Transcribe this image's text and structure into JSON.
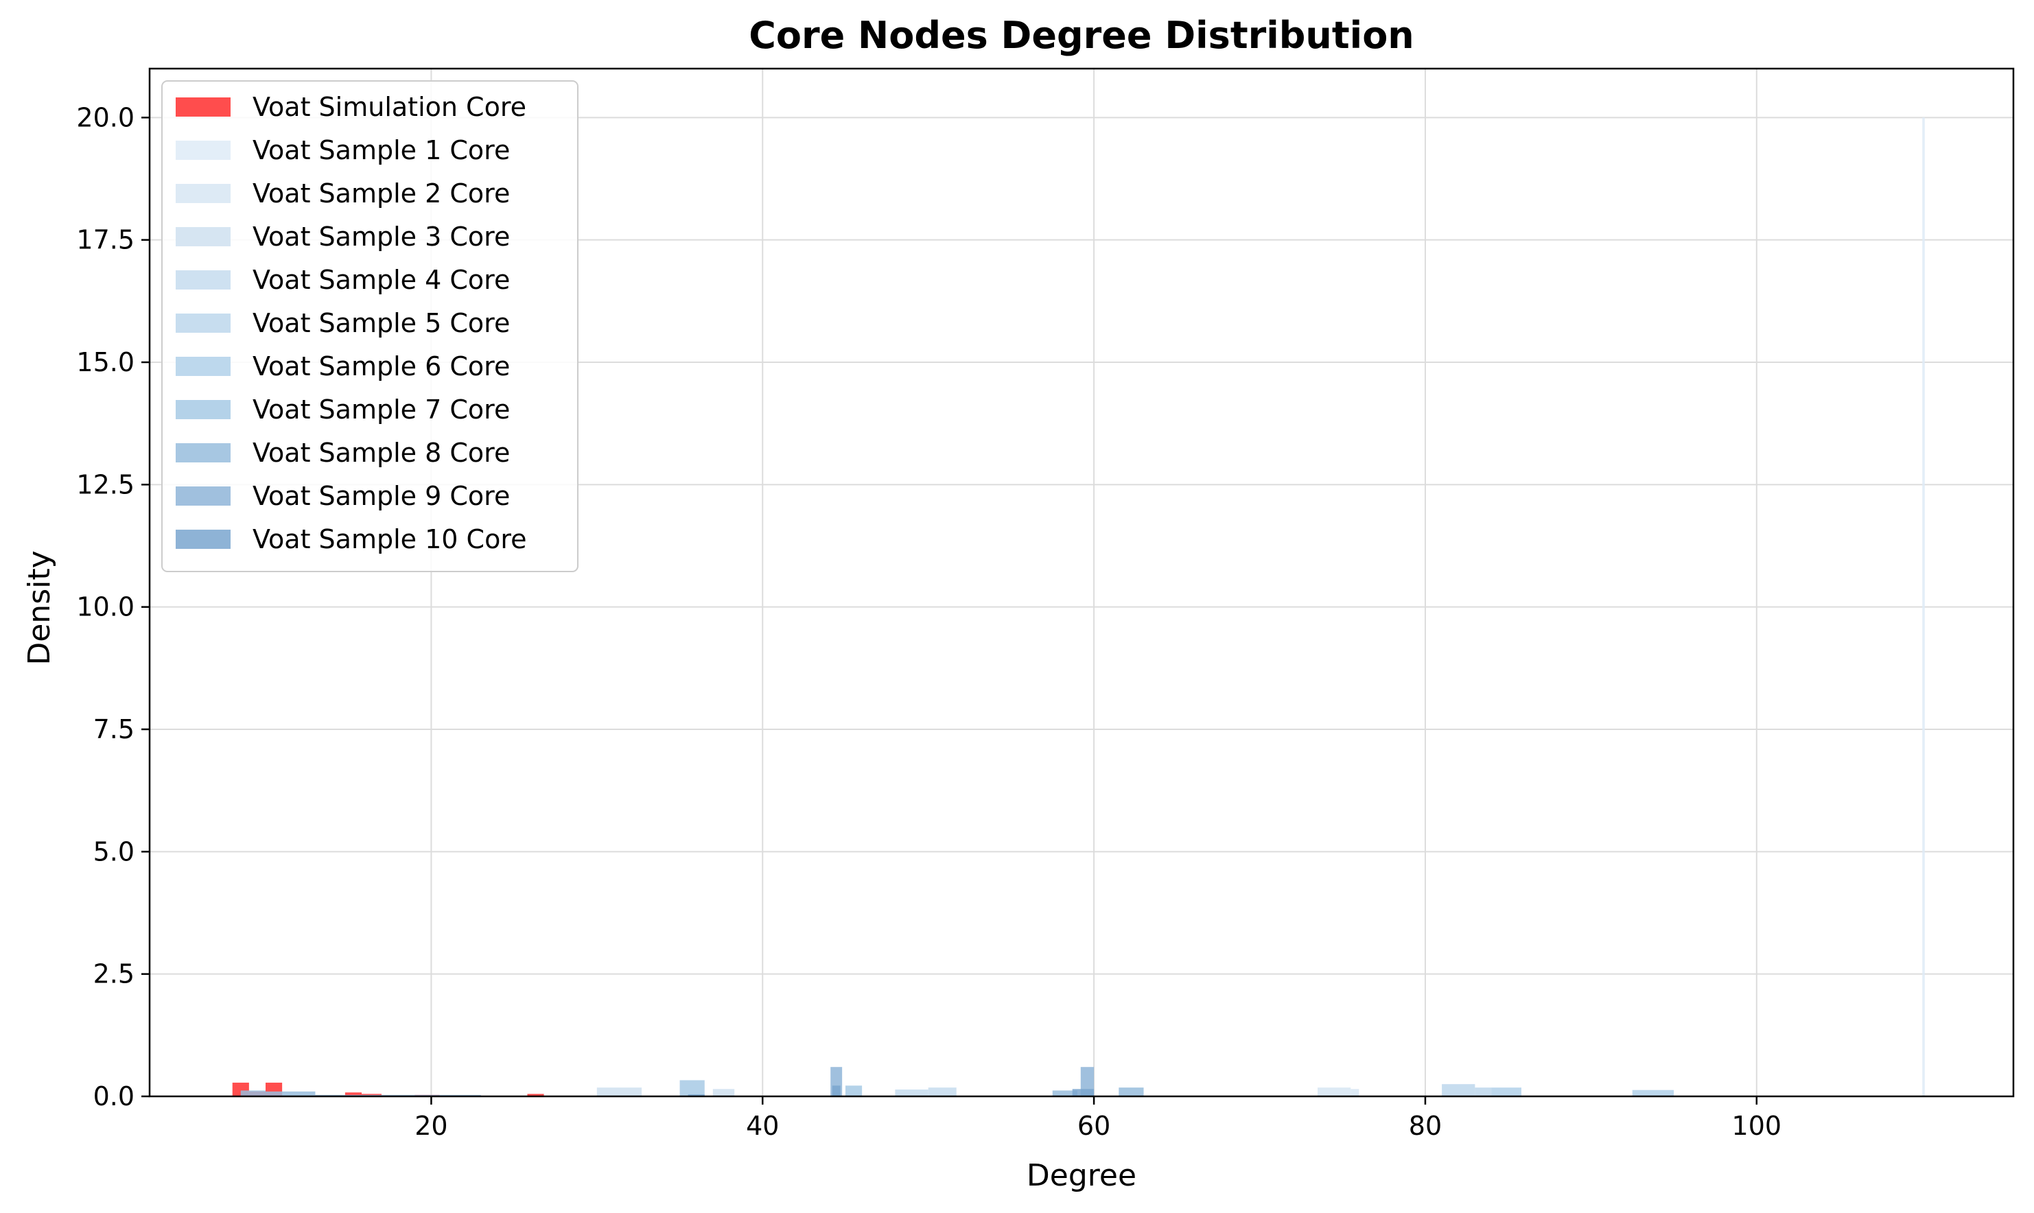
{
  "chart_data": {
    "type": "bar",
    "title": "Core Nodes Degree Distribution",
    "xlabel": "Degree",
    "ylabel": "Density",
    "xlim": [
      3,
      115.5
    ],
    "ylim": [
      0,
      21
    ],
    "xticks": [
      20,
      40,
      60,
      80,
      100
    ],
    "yticks": [
      0.0,
      2.5,
      5.0,
      7.5,
      10.0,
      12.5,
      15.0,
      17.5,
      20.0
    ],
    "xtick_labels": [
      "20",
      "40",
      "60",
      "80",
      "100"
    ],
    "ytick_labels": [
      "0.0",
      "2.5",
      "5.0",
      "7.5",
      "10.0",
      "12.5",
      "15.0",
      "17.5",
      "20.0"
    ],
    "grid": true,
    "legend_position": "upper-left",
    "series": [
      {
        "name": "Voat Simulation Core",
        "color": "#ff4d4d",
        "opacity": 1.0,
        "bins": [
          [
            8.0,
            9.0,
            0.28
          ],
          [
            9.0,
            10.0,
            0.1
          ],
          [
            10.0,
            11.0,
            0.28
          ],
          [
            14.8,
            15.8,
            0.08
          ],
          [
            15.8,
            17.0,
            0.05
          ],
          [
            19.0,
            20.5,
            0.03
          ],
          [
            25.8,
            26.8,
            0.05
          ]
        ]
      },
      {
        "name": "Voat Sample 1 Core",
        "color": "#deebf7",
        "opacity": 0.85,
        "bins": [
          [
            110.0,
            110.15,
            20.0
          ]
        ]
      },
      {
        "name": "Voat Sample 2 Core",
        "color": "#d7e6f3",
        "opacity": 0.85,
        "bins": [
          [
            73.5,
            75.5,
            0.18
          ],
          [
            75.5,
            76.0,
            0.15
          ]
        ]
      },
      {
        "name": "Voat Sample 3 Core",
        "color": "#cfe1f0",
        "opacity": 0.85,
        "bins": [
          [
            30.0,
            32.7,
            0.18
          ],
          [
            37.0,
            38.3,
            0.15
          ]
        ]
      },
      {
        "name": "Voat Sample 4 Core",
        "color": "#c6dcee",
        "opacity": 0.85,
        "bins": [
          [
            48.0,
            50.0,
            0.14
          ],
          [
            50.0,
            51.7,
            0.18
          ]
        ]
      },
      {
        "name": "Voat Sample 5 Core",
        "color": "#bdd7ec",
        "opacity": 0.85,
        "bins": [
          [
            81.0,
            83.0,
            0.25
          ],
          [
            83.0,
            84.0,
            0.18
          ]
        ]
      },
      {
        "name": "Voat Sample 6 Core",
        "color": "#b2d1ea",
        "opacity": 0.85,
        "bins": [
          [
            84.0,
            85.8,
            0.18
          ],
          [
            92.5,
            95.0,
            0.13
          ]
        ]
      },
      {
        "name": "Voat Sample 7 Core",
        "color": "#a7cae5",
        "opacity": 0.85,
        "bins": [
          [
            35.0,
            36.5,
            0.33
          ],
          [
            45.0,
            46.0,
            0.22
          ]
        ]
      },
      {
        "name": "Voat Sample 8 Core",
        "color": "#98bddd",
        "opacity": 0.85,
        "bins": [
          [
            8.5,
            10.0,
            0.12
          ],
          [
            10.0,
            13.0,
            0.1
          ],
          [
            57.5,
            59.0,
            0.12
          ],
          [
            61.5,
            63.0,
            0.18
          ]
        ]
      },
      {
        "name": "Voat Sample 9 Core",
        "color": "#8fb5d8",
        "opacity": 0.85,
        "bins": [
          [
            44.1,
            44.8,
            0.6
          ],
          [
            59.2,
            60.0,
            0.6
          ],
          [
            13.0,
            23.0,
            0.03
          ]
        ]
      },
      {
        "name": "Voat Sample 10 Core",
        "color": "#7aa6cf",
        "opacity": 0.85,
        "bins": [
          [
            44.2,
            44.7,
            0.22
          ],
          [
            58.7,
            60.0,
            0.15
          ],
          [
            35.5,
            36.5,
            0.04
          ]
        ]
      }
    ]
  }
}
